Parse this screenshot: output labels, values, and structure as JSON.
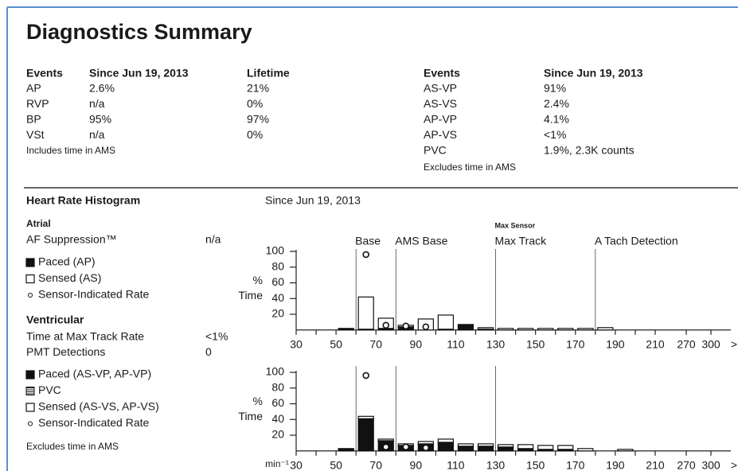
{
  "title": "Diagnostics Summary",
  "events_left": {
    "columns": [
      "Events",
      "Since Jun 19, 2013",
      "Lifetime"
    ],
    "rows": [
      [
        "AP",
        "2.6%",
        "21%"
      ],
      [
        "RVP",
        "n/a",
        "0%"
      ],
      [
        "BP",
        "95%",
        "97%"
      ],
      [
        "VSt",
        "n/a",
        "0%"
      ]
    ],
    "note": "Includes time in AMS"
  },
  "events_right": {
    "columns": [
      "Events",
      "Since Jun 19, 2013"
    ],
    "rows": [
      [
        "AS-VP",
        "91%"
      ],
      [
        "AS-VS",
        "2.4%"
      ],
      [
        "AP-VP",
        "4.1%"
      ],
      [
        "AP-VS",
        "<1%"
      ],
      [
        "PVC",
        "1.9%, 2.3K counts"
      ]
    ],
    "note": "Excludes time in AMS"
  },
  "histogram_section": {
    "title": "Heart Rate Histogram",
    "period": "Since Jun 19, 2013",
    "atrial": {
      "heading": "Atrial",
      "stats": [
        [
          "AF Suppression™",
          "n/a"
        ]
      ]
    },
    "ventricular": {
      "heading": "Ventricular",
      "stats": [
        [
          "Time at Max Track Rate",
          "<1%"
        ],
        [
          "PMT Detections",
          "0"
        ]
      ],
      "note": "Excludes time in AMS"
    }
  },
  "chart_data": [
    {
      "type": "histogram",
      "bins": [
        50,
        60,
        70,
        80,
        90,
        100,
        110,
        120,
        130,
        140,
        150,
        160,
        170,
        180,
        190
      ],
      "series": [
        {
          "name": "Paced (AP)",
          "color": "#111111",
          "values": [
            2,
            1,
            2,
            4,
            0,
            1,
            7,
            1,
            0,
            0,
            0,
            0,
            0,
            0
          ]
        },
        {
          "name": "Sensed (AS)",
          "color": "#ffffff",
          "values": [
            0,
            41,
            13,
            2,
            14,
            18,
            0,
            2,
            2,
            2,
            2,
            2,
            2,
            3
          ]
        }
      ],
      "markers": {
        "name": "Sensor-Indicated Rate",
        "x": [
          65,
          75,
          85,
          95
        ],
        "values": [
          93,
          3,
          2,
          1
        ]
      },
      "y_label": [
        "%",
        "Time"
      ],
      "ylim": [
        0,
        100
      ],
      "yticks": [
        20,
        40,
        60,
        80,
        100
      ],
      "xticks": [
        30,
        50,
        70,
        90,
        110,
        130,
        150,
        170,
        190,
        210,
        270,
        300
      ],
      "x_overflow": ">",
      "annotations": [
        {
          "label": "Base",
          "value": 60
        },
        {
          "label": "AMS Base",
          "value": 80
        },
        {
          "label": "Max Track",
          "sublabel": "Max Sensor",
          "value": 130
        },
        {
          "label": "A Tach Detection",
          "value": 180
        }
      ]
    },
    {
      "type": "histogram",
      "bins": [
        50,
        60,
        70,
        80,
        90,
        100,
        110,
        120,
        130,
        140,
        150,
        160,
        170,
        180,
        190,
        200
      ],
      "series": [
        {
          "name": "Paced (AS-VP, AP-VP)",
          "color": "#111111",
          "values": [
            2,
            40,
            12,
            6,
            8,
            10,
            5,
            5,
            4,
            3,
            2,
            2,
            0,
            0,
            0
          ]
        },
        {
          "name": "PVC",
          "color": "#777777",
          "values": [
            0,
            1,
            1,
            1,
            1,
            1,
            1,
            1,
            1,
            0,
            0,
            0,
            0,
            0,
            0
          ]
        },
        {
          "name": "Sensed (AS-VS, AP-VS)",
          "color": "#ffffff",
          "values": [
            1,
            3,
            2,
            2,
            3,
            4,
            3,
            3,
            3,
            5,
            5,
            5,
            3,
            0,
            2
          ]
        }
      ],
      "markers": {
        "name": "Sensor-Indicated Rate",
        "x": [
          65,
          75,
          85,
          95
        ],
        "values": [
          93,
          2,
          2,
          1
        ]
      },
      "y_label": [
        "%",
        "Time"
      ],
      "x_label": "min⁻¹",
      "ylim": [
        0,
        100
      ],
      "yticks": [
        20,
        40,
        60,
        80,
        100
      ],
      "xticks": [
        30,
        50,
        70,
        90,
        110,
        130,
        150,
        170,
        190,
        210,
        270,
        300
      ],
      "x_overflow": ">",
      "annotations": [
        {
          "value": 60
        },
        {
          "value": 80
        },
        {
          "value": 130
        }
      ]
    }
  ]
}
